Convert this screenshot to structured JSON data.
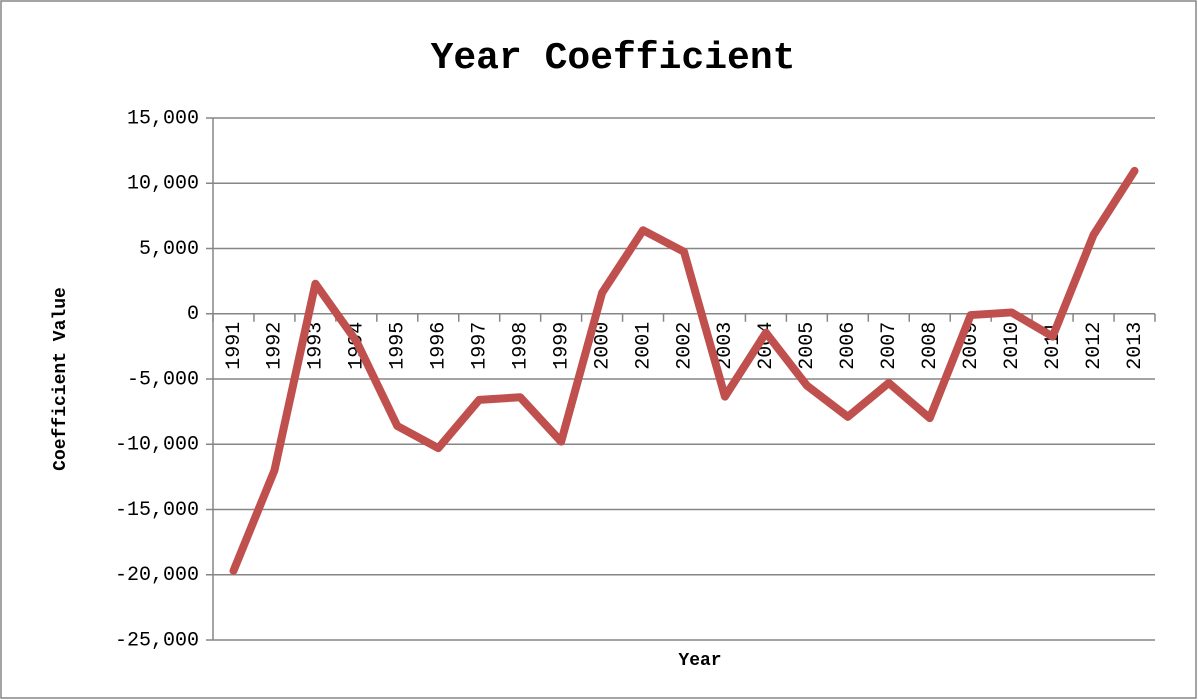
{
  "chart_data": {
    "type": "line",
    "title": "Year Coefficient",
    "x_label": "Year",
    "y_label": "Coefficient Value",
    "categories": [
      "1991",
      "1992",
      "1993",
      "1994",
      "1995",
      "1996",
      "1997",
      "1998",
      "1999",
      "2000",
      "2001",
      "2002",
      "2003",
      "2004",
      "2005",
      "2006",
      "2007",
      "2008",
      "2009",
      "2010",
      "2011",
      "2012",
      "2013"
    ],
    "series": [
      {
        "name": "Coefficient Value",
        "color": "#c0504d",
        "values": [
          -19700,
          -12000,
          2300,
          -2100,
          -8600,
          -10300,
          -6600,
          -6400,
          -9800,
          1600,
          6400,
          4750,
          -6350,
          -1450,
          -5500,
          -7900,
          -5300,
          -8000,
          -100,
          100,
          -1750,
          6050,
          10950
        ]
      }
    ],
    "ylim": [
      -25000,
      15000
    ],
    "yticks": [
      {
        "value": -25000,
        "label": "-25,000"
      },
      {
        "value": -20000,
        "label": "-20,000"
      },
      {
        "value": -15000,
        "label": "-15,000"
      },
      {
        "value": -10000,
        "label": "-10,000"
      },
      {
        "value": -5000,
        "label": "-5,000"
      },
      0,
      {
        "value": 5000,
        "label": "5,000"
      },
      {
        "value": 10000,
        "label": "10,000"
      },
      {
        "value": 15000,
        "label": "15,000"
      }
    ],
    "grid": true,
    "legend": false
  }
}
